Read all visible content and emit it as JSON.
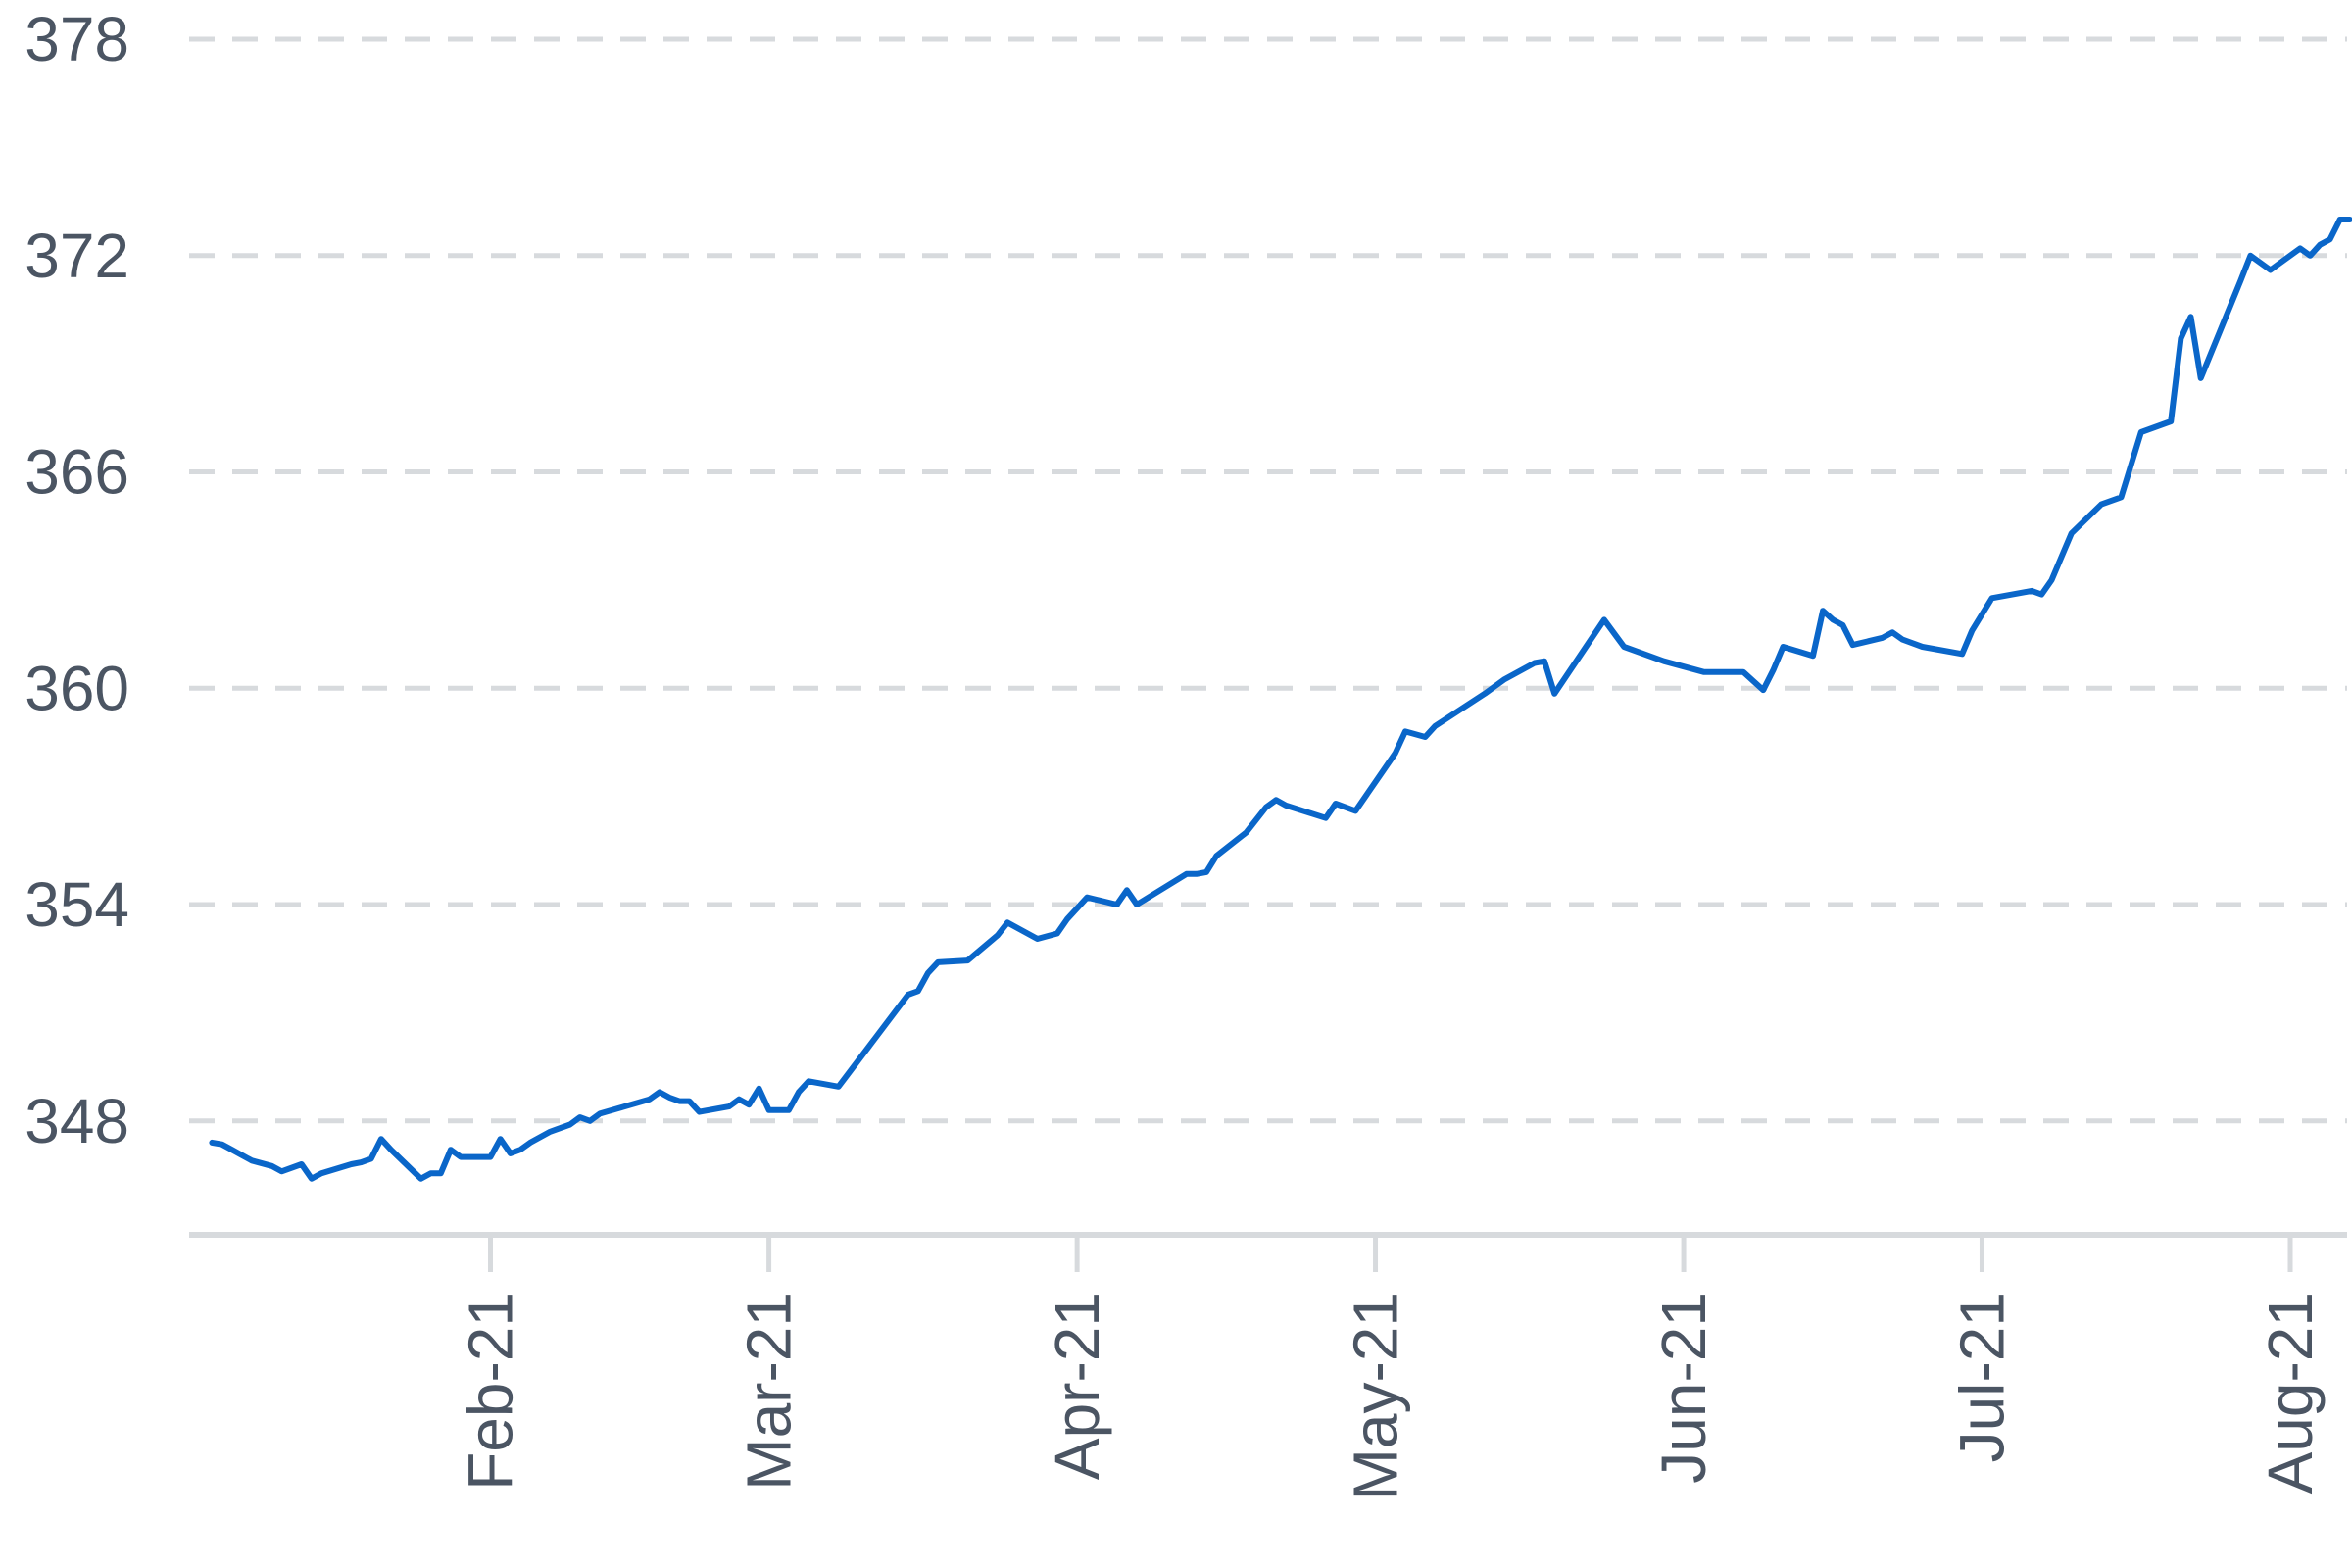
{
  "chart_data": {
    "type": "line",
    "title": "",
    "xlabel": "",
    "ylabel": "",
    "grid": true,
    "legend": "none",
    "x_axis": {
      "type": "date",
      "range": [
        "2021-01-01",
        "2021-08-05"
      ],
      "ticks": [
        {
          "date": "2021-02-01",
          "label": "Feb-21"
        },
        {
          "date": "2021-03-01",
          "label": "Mar-21"
        },
        {
          "date": "2021-04-01",
          "label": "Apr-21"
        },
        {
          "date": "2021-05-01",
          "label": "May-21"
        },
        {
          "date": "2021-06-01",
          "label": "Jun-21"
        },
        {
          "date": "2021-07-01",
          "label": "Jul-21"
        },
        {
          "date": "2021-08-01",
          "label": "Aug-21"
        }
      ]
    },
    "y_axis": {
      "range": [
        345,
        378
      ],
      "ticks": [
        {
          "value": 348,
          "label": "348"
        },
        {
          "value": 354,
          "label": "354"
        },
        {
          "value": 360,
          "label": "360"
        },
        {
          "value": 366,
          "label": "366"
        },
        {
          "value": 372,
          "label": "372"
        },
        {
          "value": 378,
          "label": "378"
        }
      ]
    },
    "colors": {
      "series": "#0a66c9",
      "grid": "#d7dadd",
      "axis": "#d7dadd",
      "tick_label": "#4b5563"
    },
    "series": [
      {
        "name": "",
        "color": "#0a66c9",
        "points": [
          [
            "2021-01-04",
            347.4
          ],
          [
            "2021-01-05",
            347.35
          ],
          [
            "2021-01-06",
            347.2
          ],
          [
            "2021-01-07",
            347.05
          ],
          [
            "2021-01-08",
            346.9
          ],
          [
            "2021-01-10",
            346.75
          ],
          [
            "2021-01-11",
            346.6
          ],
          [
            "2021-01-13",
            346.8
          ],
          [
            "2021-01-14",
            346.4
          ],
          [
            "2021-01-15",
            346.55
          ],
          [
            "2021-01-18",
            346.8
          ],
          [
            "2021-01-19",
            346.85
          ],
          [
            "2021-01-20",
            346.95
          ],
          [
            "2021-01-21",
            347.5
          ],
          [
            "2021-01-22",
            347.2
          ],
          [
            "2021-01-25",
            346.4
          ],
          [
            "2021-01-26",
            346.55
          ],
          [
            "2021-01-27",
            346.55
          ],
          [
            "2021-01-28",
            347.2
          ],
          [
            "2021-01-29",
            347.0
          ],
          [
            "2021-02-01",
            347.0
          ],
          [
            "2021-02-02",
            347.5
          ],
          [
            "2021-02-03",
            347.1
          ],
          [
            "2021-02-04",
            347.2
          ],
          [
            "2021-02-05",
            347.4
          ],
          [
            "2021-02-07",
            347.7
          ],
          [
            "2021-02-09",
            347.9
          ],
          [
            "2021-02-10",
            348.1
          ],
          [
            "2021-02-11",
            348.0
          ],
          [
            "2021-02-12",
            348.2
          ],
          [
            "2021-02-17",
            348.6
          ],
          [
            "2021-02-18",
            348.8
          ],
          [
            "2021-02-19",
            348.65
          ],
          [
            "2021-02-20",
            348.55
          ],
          [
            "2021-02-21",
            348.55
          ],
          [
            "2021-02-22",
            348.25
          ],
          [
            "2021-02-25",
            348.4
          ],
          [
            "2021-02-26",
            348.6
          ],
          [
            "2021-02-27",
            348.45
          ],
          [
            "2021-02-28",
            348.9
          ],
          [
            "2021-03-01",
            348.3
          ],
          [
            "2021-03-03",
            348.3
          ],
          [
            "2021-03-04",
            348.8
          ],
          [
            "2021-03-05",
            349.1
          ],
          [
            "2021-03-08",
            348.95
          ],
          [
            "2021-03-15",
            351.5
          ],
          [
            "2021-03-16",
            351.6
          ],
          [
            "2021-03-17",
            352.1
          ],
          [
            "2021-03-18",
            352.4
          ],
          [
            "2021-03-21",
            352.45
          ],
          [
            "2021-03-24",
            353.15
          ],
          [
            "2021-03-25",
            353.5
          ],
          [
            "2021-03-28",
            353.05
          ],
          [
            "2021-03-30",
            353.2
          ],
          [
            "2021-03-31",
            353.6
          ],
          [
            "2021-04-02",
            354.2
          ],
          [
            "2021-04-05",
            354.0
          ],
          [
            "2021-04-06",
            354.4
          ],
          [
            "2021-04-07",
            354.0
          ],
          [
            "2021-04-12",
            354.85
          ],
          [
            "2021-04-13",
            354.85
          ],
          [
            "2021-04-14",
            354.9
          ],
          [
            "2021-04-15",
            355.35
          ],
          [
            "2021-04-18",
            356.0
          ],
          [
            "2021-04-20",
            356.7
          ],
          [
            "2021-04-21",
            356.9
          ],
          [
            "2021-04-22",
            356.75
          ],
          [
            "2021-04-26",
            356.4
          ],
          [
            "2021-04-27",
            356.8
          ],
          [
            "2021-04-29",
            356.6
          ],
          [
            "2021-05-03",
            358.2
          ],
          [
            "2021-05-04",
            358.8
          ],
          [
            "2021-05-06",
            358.65
          ],
          [
            "2021-05-07",
            358.95
          ],
          [
            "2021-05-12",
            359.85
          ],
          [
            "2021-05-14",
            360.25
          ],
          [
            "2021-05-17",
            360.7
          ],
          [
            "2021-05-18",
            360.75
          ],
          [
            "2021-05-19",
            359.85
          ],
          [
            "2021-05-24",
            361.9
          ],
          [
            "2021-05-26",
            361.15
          ],
          [
            "2021-05-30",
            360.75
          ],
          [
            "2021-06-03",
            360.45
          ],
          [
            "2021-06-07",
            360.45
          ],
          [
            "2021-06-09",
            359.95
          ],
          [
            "2021-06-10",
            360.5
          ],
          [
            "2021-06-11",
            361.15
          ],
          [
            "2021-06-14",
            360.9
          ],
          [
            "2021-06-15",
            362.15
          ],
          [
            "2021-06-16",
            361.9
          ],
          [
            "2021-06-17",
            361.75
          ],
          [
            "2021-06-18",
            361.2
          ],
          [
            "2021-06-21",
            361.4
          ],
          [
            "2021-06-22",
            361.55
          ],
          [
            "2021-06-23",
            361.35
          ],
          [
            "2021-06-25",
            361.15
          ],
          [
            "2021-06-29",
            360.95
          ],
          [
            "2021-06-30",
            361.6
          ],
          [
            "2021-07-02",
            362.5
          ],
          [
            "2021-07-06",
            362.7
          ],
          [
            "2021-07-07",
            362.6
          ],
          [
            "2021-07-08",
            363.0
          ],
          [
            "2021-07-10",
            364.3
          ],
          [
            "2021-07-13",
            365.1
          ],
          [
            "2021-07-15",
            365.3
          ],
          [
            "2021-07-17",
            367.1
          ],
          [
            "2021-07-20",
            367.4
          ],
          [
            "2021-07-21",
            369.7
          ],
          [
            "2021-07-22",
            370.3
          ],
          [
            "2021-07-23",
            368.6
          ],
          [
            "2021-07-27",
            371.3
          ],
          [
            "2021-07-28",
            372.0
          ],
          [
            "2021-07-30",
            371.6
          ],
          [
            "2021-08-02",
            372.2
          ],
          [
            "2021-08-03",
            372.0
          ],
          [
            "2021-08-04",
            372.3
          ],
          [
            "2021-08-05",
            372.45
          ],
          [
            "2021-08-06",
            373.0
          ],
          [
            "2021-08-07",
            373.0
          ]
        ]
      }
    ]
  }
}
